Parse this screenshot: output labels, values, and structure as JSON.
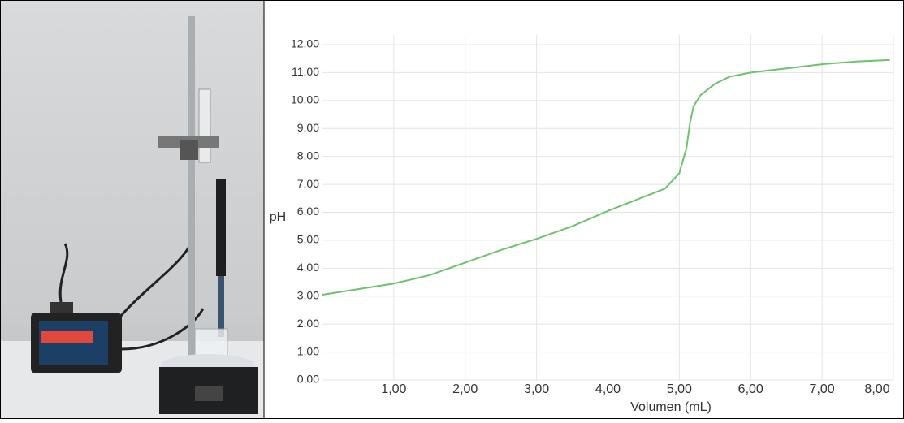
{
  "chart_data": {
    "type": "line",
    "xlabel": "Volumen (mL)",
    "ylabel": "pH",
    "xlim": [
      0,
      8
    ],
    "ylim": [
      0,
      12
    ],
    "xticks": [
      {
        "value": 1,
        "label": "1,00"
      },
      {
        "value": 2,
        "label": "2,00"
      },
      {
        "value": 3,
        "label": "3,00"
      },
      {
        "value": 4,
        "label": "4,00"
      },
      {
        "value": 5,
        "label": "5,00"
      },
      {
        "value": 6,
        "label": "6,00"
      },
      {
        "value": 7,
        "label": "7,00"
      },
      {
        "value": 8,
        "label": "8,00"
      }
    ],
    "yticks": [
      {
        "value": 0,
        "label": "0,00"
      },
      {
        "value": 1,
        "label": "1,00"
      },
      {
        "value": 2,
        "label": "2,00"
      },
      {
        "value": 3,
        "label": "3,00"
      },
      {
        "value": 4,
        "label": "4,00"
      },
      {
        "value": 5,
        "label": "5,00"
      },
      {
        "value": 6,
        "label": "6,00"
      },
      {
        "value": 7,
        "label": "7,00"
      },
      {
        "value": 8,
        "label": "8,00"
      },
      {
        "value": 9,
        "label": "9,00"
      },
      {
        "value": 10,
        "label": "10,00"
      },
      {
        "value": 11,
        "label": "11,00"
      },
      {
        "value": 12,
        "label": "12,00"
      }
    ],
    "grid": true,
    "x": [
      0,
      0.5,
      1.0,
      1.5,
      2.0,
      2.5,
      3.0,
      3.5,
      4.0,
      4.5,
      4.8,
      5.0,
      5.1,
      5.15,
      5.2,
      5.3,
      5.5,
      5.7,
      6.0,
      6.5,
      7.0,
      7.5,
      7.95
    ],
    "series": [
      {
        "color": "#6cc36c",
        "values": [
          3.05,
          3.25,
          3.45,
          3.75,
          4.2,
          4.65,
          5.05,
          5.5,
          6.05,
          6.55,
          6.85,
          7.4,
          8.3,
          9.2,
          9.8,
          10.2,
          10.6,
          10.85,
          11.0,
          11.15,
          11.3,
          11.4,
          11.45
        ]
      }
    ]
  }
}
